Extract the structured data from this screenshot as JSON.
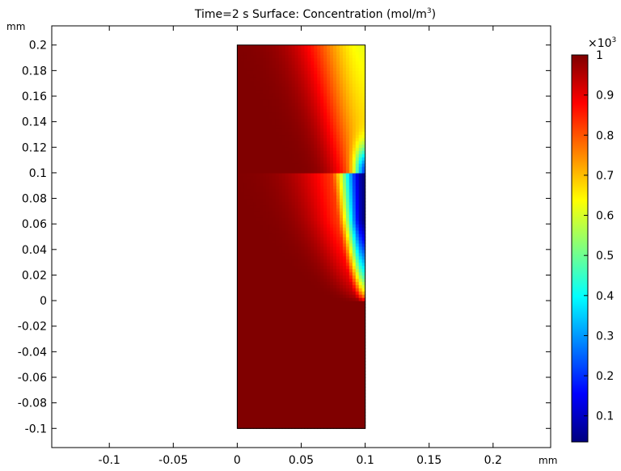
{
  "chart_data": {
    "type": "heatmap",
    "title": "Time=2 s   Surface: Concentration (mol/m",
    "title_superscript": "3",
    "title_suffix": ")",
    "x_unit": "mm",
    "y_unit": "mm",
    "xlim": [
      -0.145,
      0.245
    ],
    "ylim": [
      -0.115,
      0.215
    ],
    "x_ticks": [
      -0.1,
      -0.05,
      0,
      0.05,
      0.1,
      0.15,
      0.2
    ],
    "x_tick_labels": [
      "-0.1",
      "-0.05",
      "0",
      "0.05",
      "0.1",
      "0.15",
      "0.2"
    ],
    "y_ticks": [
      0.2,
      0.18,
      0.16,
      0.14,
      0.12,
      0.1,
      0.08,
      0.06,
      0.04,
      0.02,
      0,
      -0.02,
      -0.04,
      -0.06,
      -0.08,
      -0.1
    ],
    "y_tick_labels": [
      "0.2",
      "0.18",
      "0.16",
      "0.14",
      "0.12",
      "0.1",
      "0.08",
      "0.06",
      "0.04",
      "0.02",
      "0",
      "-0.02",
      "-0.04",
      "-0.06",
      "-0.08",
      "-0.1"
    ],
    "domain": {
      "x": [
        0,
        0.1
      ],
      "y": [
        -0.1,
        0.2
      ]
    },
    "colorscale": "jet",
    "colorbar": {
      "multiplier_base": "×10",
      "multiplier_exp": "3",
      "min": 0.035,
      "max": 1.0,
      "ticks": [
        1,
        0.9,
        0.8,
        0.7,
        0.6,
        0.5,
        0.4,
        0.3,
        0.2,
        0.1
      ],
      "tick_labels": [
        "1",
        "0.9",
        "0.8",
        "0.7",
        "0.6",
        "0.5",
        "0.4",
        "0.3",
        "0.2",
        "0.1"
      ]
    },
    "field_samples": [
      {
        "x": 0.0,
        "y": 0.0,
        "value": 1.0
      },
      {
        "x": 0.1,
        "y": 0.2,
        "value": 0.68
      },
      {
        "x": 0.1,
        "y": 0.1,
        "value": 0.08
      },
      {
        "x": 0.1,
        "y": 0.06,
        "value": 0.05
      },
      {
        "x": 0.1,
        "y": 0.0,
        "value": 0.3
      },
      {
        "x": 0.09,
        "y": 0.04,
        "value": 0.5
      },
      {
        "x": 0.06,
        "y": 0.2,
        "value": 0.95
      },
      {
        "x": 0.05,
        "y": 0.1,
        "value": 1.0
      },
      {
        "x": 0.1,
        "y": -0.02,
        "value": 1.0
      }
    ],
    "grid": false,
    "legend": "colorbar right"
  }
}
